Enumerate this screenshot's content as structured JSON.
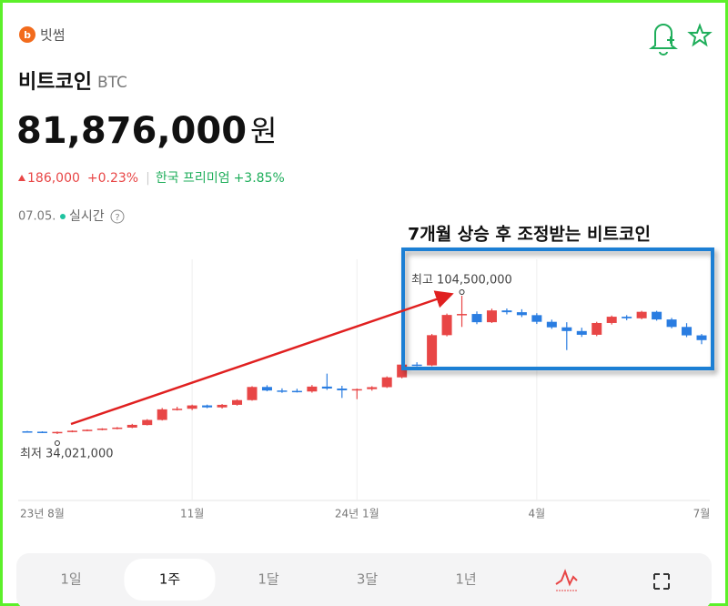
{
  "app": {
    "name": "빗썸"
  },
  "asset": {
    "name": "비트코인",
    "symbol": "BTC"
  },
  "price": {
    "value": "81,876,000",
    "unit": "원"
  },
  "change": {
    "amount": "186,000",
    "percent": "+0.23%",
    "premium_label": "한국 프리미엄",
    "premium": "+3.85%"
  },
  "time": {
    "date": "07.05.",
    "mode": "실시간"
  },
  "chart_data": {
    "type": "candlestick",
    "annotation": "7개월 상승 후 조정받는 비트코인",
    "max_label": "최고 104,500,000",
    "min_label": "최저 34,021,000",
    "up_color": "#e84646",
    "down_color": "#2a7de1",
    "categories": [
      null,
      "23년 8월",
      null,
      null,
      null,
      null,
      null,
      null,
      null,
      null,
      null,
      "11월",
      null,
      null,
      null,
      null,
      null,
      null,
      null,
      null,
      null,
      null,
      "24년 1월",
      null,
      null,
      null,
      null,
      null,
      null,
      null,
      null,
      null,
      null,
      null,
      "4월",
      null,
      null,
      null,
      null,
      null,
      null,
      null,
      null,
      null,
      null,
      "7월"
    ],
    "open": [
      35400000,
      35200000,
      34600000,
      35100000,
      35700000,
      36200000,
      36800000,
      37300000,
      38600000,
      41200000,
      46600000,
      46900000,
      48600000,
      47600000,
      48900000,
      51300000,
      58000000,
      56200000,
      56000000,
      55700000,
      58200000,
      57200000,
      56300000,
      56900000,
      57900000,
      62900000,
      69400000,
      69000000,
      84400000,
      94700000,
      95200000,
      91000000,
      97000000,
      96100000,
      94600000,
      91200000,
      88400000,
      86500000,
      84600000,
      90600000,
      93800000,
      93000000,
      96300000,
      92400000,
      88600000,
      84300000
    ],
    "high": [
      35600000,
      35400000,
      35300000,
      35900000,
      36400000,
      37000000,
      37600000,
      39200000,
      41600000,
      47300000,
      47900000,
      49000000,
      49000000,
      49300000,
      51700000,
      58400000,
      58900000,
      57300000,
      57100000,
      59000000,
      64800000,
      58600000,
      57200000,
      58400000,
      63400000,
      70200000,
      70600000,
      85000000,
      95400000,
      104500000,
      96500000,
      97900000,
      98000000,
      97600000,
      95600000,
      92300000,
      91000000,
      88200000,
      91200000,
      94400000,
      94600000,
      96800000,
      96800000,
      93200000,
      90500000,
      85000000
    ],
    "low": [
      34800000,
      34500000,
      34021000,
      34900000,
      35400000,
      35900000,
      36400000,
      37000000,
      38400000,
      40900000,
      46000000,
      46200000,
      47200000,
      47000000,
      48500000,
      51000000,
      55800000,
      55000000,
      55200000,
      55100000,
      56500000,
      52400000,
      51800000,
      56100000,
      57500000,
      62400000,
      68500000,
      68600000,
      83800000,
      88600000,
      90000000,
      90600000,
      95000000,
      93600000,
      90100000,
      87600000,
      76800000,
      83500000,
      83900000,
      89800000,
      92000000,
      92500000,
      91800000,
      87900000,
      83400000,
      79800000
    ],
    "close": [
      35000000,
      34800000,
      35100000,
      35700000,
      36200000,
      36800000,
      37300000,
      38700000,
      41200000,
      46600000,
      46900000,
      48600000,
      47600000,
      48900000,
      51300000,
      58000000,
      56200000,
      56000000,
      55700000,
      58200000,
      57200000,
      56300000,
      56900000,
      57900000,
      62900000,
      69400000,
      69000000,
      84400000,
      94700000,
      95200000,
      91000000,
      97000000,
      96100000,
      94600000,
      91200000,
      88400000,
      86500000,
      84600000,
      90600000,
      93800000,
      93000000,
      96300000,
      92400000,
      88600000,
      84300000,
      81876000
    ]
  },
  "tabs": [
    "1일",
    "1주",
    "1달",
    "3달",
    "1년"
  ],
  "selected_tab": 1
}
